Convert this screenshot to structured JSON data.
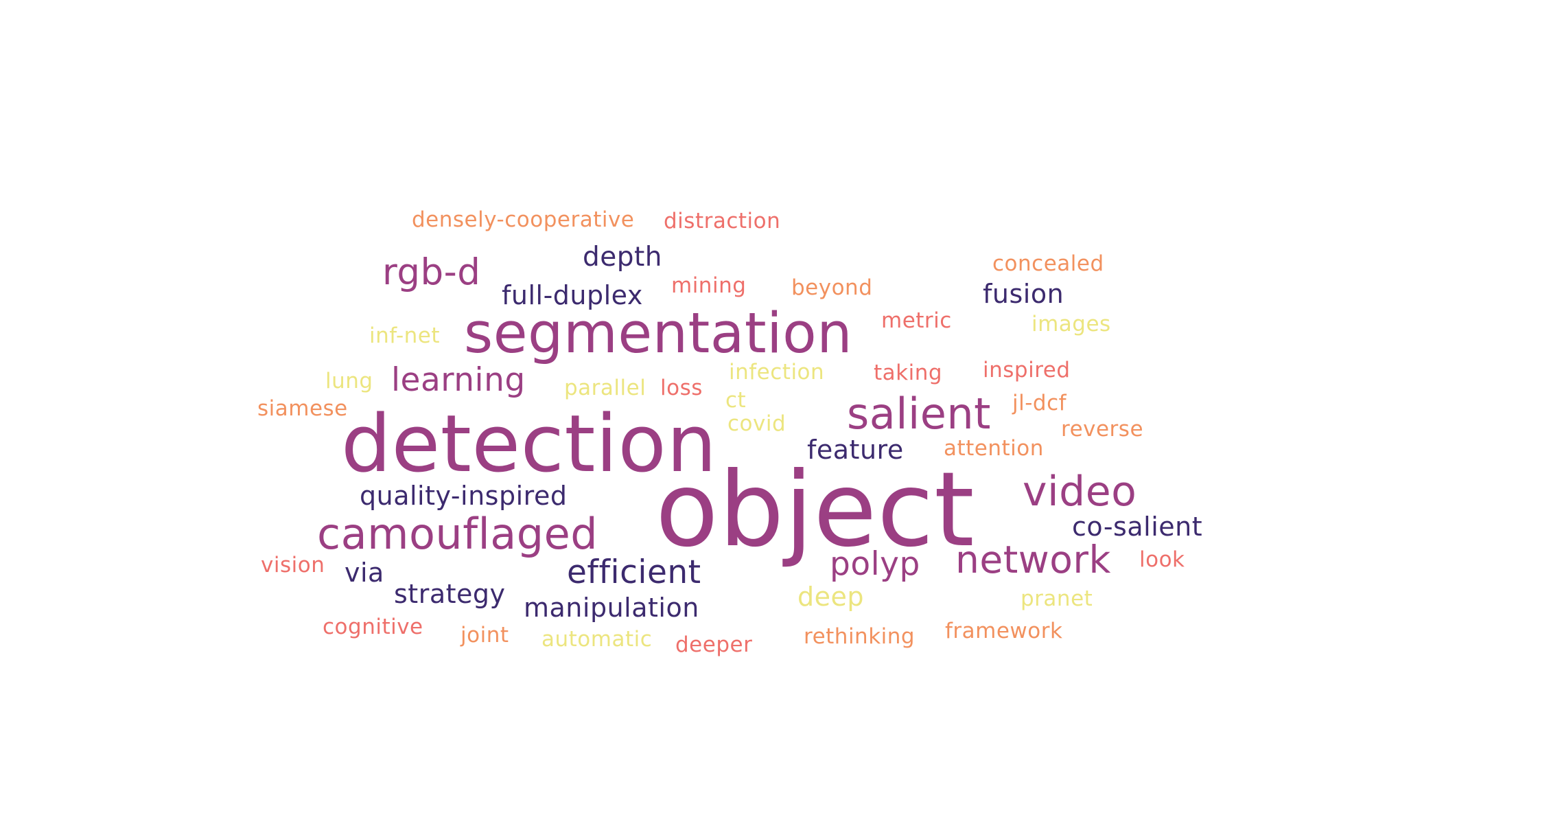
{
  "word_cloud": {
    "palette": {
      "purple": "#9b3f83",
      "navy": "#3c2a6e",
      "coral": "#ee6f6a",
      "orange": "#f2915e",
      "yellow": "#ece57f"
    },
    "words": [
      {
        "text": "object",
        "color": "#9b3f83"
      },
      {
        "text": "detection",
        "color": "#9b3f83"
      },
      {
        "text": "segmentation",
        "color": "#9b3f83"
      },
      {
        "text": "camouflaged",
        "color": "#9b3f83"
      },
      {
        "text": "salient",
        "color": "#9b3f83"
      },
      {
        "text": "video",
        "color": "#9b3f83"
      },
      {
        "text": "network",
        "color": "#9b3f83"
      },
      {
        "text": "rgb-d",
        "color": "#9b3f83"
      },
      {
        "text": "learning",
        "color": "#9b3f83"
      },
      {
        "text": "polyp",
        "color": "#9b3f83"
      },
      {
        "text": "efficient",
        "color": "#3c2a6e"
      },
      {
        "text": "depth",
        "color": "#3c2a6e"
      },
      {
        "text": "full-duplex",
        "color": "#3c2a6e"
      },
      {
        "text": "fusion",
        "color": "#3c2a6e"
      },
      {
        "text": "feature",
        "color": "#3c2a6e"
      },
      {
        "text": "quality-inspired",
        "color": "#3c2a6e"
      },
      {
        "text": "co-salient",
        "color": "#3c2a6e"
      },
      {
        "text": "via",
        "color": "#3c2a6e"
      },
      {
        "text": "strategy",
        "color": "#3c2a6e"
      },
      {
        "text": "manipulation",
        "color": "#3c2a6e"
      },
      {
        "text": "densely-cooperative",
        "color": "#f2915e"
      },
      {
        "text": "distraction",
        "color": "#ee6f6a"
      },
      {
        "text": "concealed",
        "color": "#f2915e"
      },
      {
        "text": "mining",
        "color": "#ee6f6a"
      },
      {
        "text": "beyond",
        "color": "#f2915e"
      },
      {
        "text": "metric",
        "color": "#ee6f6a"
      },
      {
        "text": "images",
        "color": "#ece57f"
      },
      {
        "text": "inf-net",
        "color": "#ece57f"
      },
      {
        "text": "lung",
        "color": "#ece57f"
      },
      {
        "text": "parallel",
        "color": "#ece57f"
      },
      {
        "text": "loss",
        "color": "#ee6f6a"
      },
      {
        "text": "infection",
        "color": "#ece57f"
      },
      {
        "text": "taking",
        "color": "#ee6f6a"
      },
      {
        "text": "inspired",
        "color": "#ee6f6a"
      },
      {
        "text": "siamese",
        "color": "#f2915e"
      },
      {
        "text": "ct",
        "color": "#ece57f"
      },
      {
        "text": "covid",
        "color": "#ece57f"
      },
      {
        "text": "jl-dcf",
        "color": "#f2915e"
      },
      {
        "text": "reverse",
        "color": "#f2915e"
      },
      {
        "text": "attention",
        "color": "#f2915e"
      },
      {
        "text": "vision",
        "color": "#ee6f6a"
      },
      {
        "text": "look",
        "color": "#ee6f6a"
      },
      {
        "text": "deep",
        "color": "#ece57f"
      },
      {
        "text": "pranet",
        "color": "#ece57f"
      },
      {
        "text": "cognitive",
        "color": "#ee6f6a"
      },
      {
        "text": "joint",
        "color": "#f2915e"
      },
      {
        "text": "automatic",
        "color": "#ece57f"
      },
      {
        "text": "deeper",
        "color": "#ee6f6a"
      },
      {
        "text": "rethinking",
        "color": "#f2915e"
      },
      {
        "text": "framework",
        "color": "#f2915e"
      }
    ]
  }
}
